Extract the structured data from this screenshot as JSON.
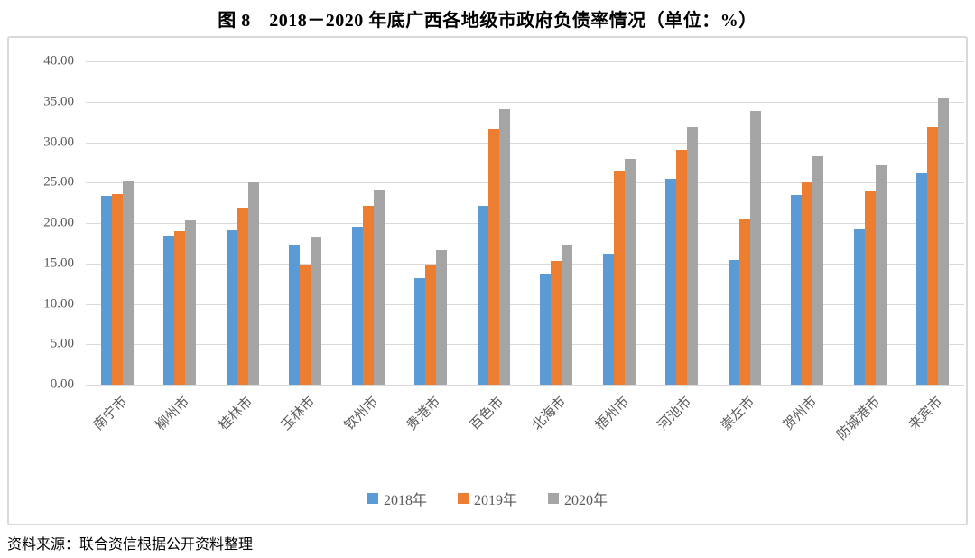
{
  "title": "图 8　2018－2020 年底广西各地级市政府负债率情况（单位：%）",
  "source_note": "资料来源：联合资信根据公开资料整理",
  "colors": {
    "series_2018": "#5B9BD5",
    "series_2019": "#ED7D31",
    "series_2020": "#A5A5A5",
    "gridline": "#D9D9D9",
    "axis_text": "#595959",
    "frame_border": "#D9D9D9"
  },
  "chart_data": {
    "type": "bar",
    "title": "图 8　2018－2020 年底广西各地级市政府负债率情况（单位：%）",
    "xlabel": "",
    "ylabel": "",
    "ylim": [
      0,
      40
    ],
    "ytick_step": 5,
    "ytick_labels": [
      "40.00",
      "35.00",
      "30.00",
      "25.00",
      "20.00",
      "15.00",
      "10.00",
      "5.00",
      "0.00"
    ],
    "grid": true,
    "legend_position": "bottom",
    "categories": [
      "南宁市",
      "柳州市",
      "桂林市",
      "玉林市",
      "钦州市",
      "贵港市",
      "百色市",
      "北海市",
      "梧州市",
      "河池市",
      "崇左市",
      "贺州市",
      "防城港市",
      "来宾市"
    ],
    "series": [
      {
        "name": "2018年",
        "color": "#5B9BD5",
        "values": [
          23.4,
          18.4,
          19.1,
          17.3,
          19.5,
          13.2,
          22.1,
          13.8,
          16.2,
          25.5,
          15.4,
          23.5,
          19.2,
          26.2
        ]
      },
      {
        "name": "2019年",
        "color": "#ED7D31",
        "values": [
          23.6,
          19.0,
          21.9,
          14.7,
          22.1,
          14.8,
          31.6,
          15.3,
          26.5,
          29.0,
          20.6,
          25.0,
          23.9,
          31.9
        ]
      },
      {
        "name": "2020年",
        "color": "#A5A5A5",
        "values": [
          25.2,
          20.3,
          25.0,
          18.3,
          24.1,
          16.7,
          34.1,
          17.3,
          27.9,
          31.9,
          33.9,
          28.3,
          27.2,
          35.5
        ]
      }
    ]
  }
}
